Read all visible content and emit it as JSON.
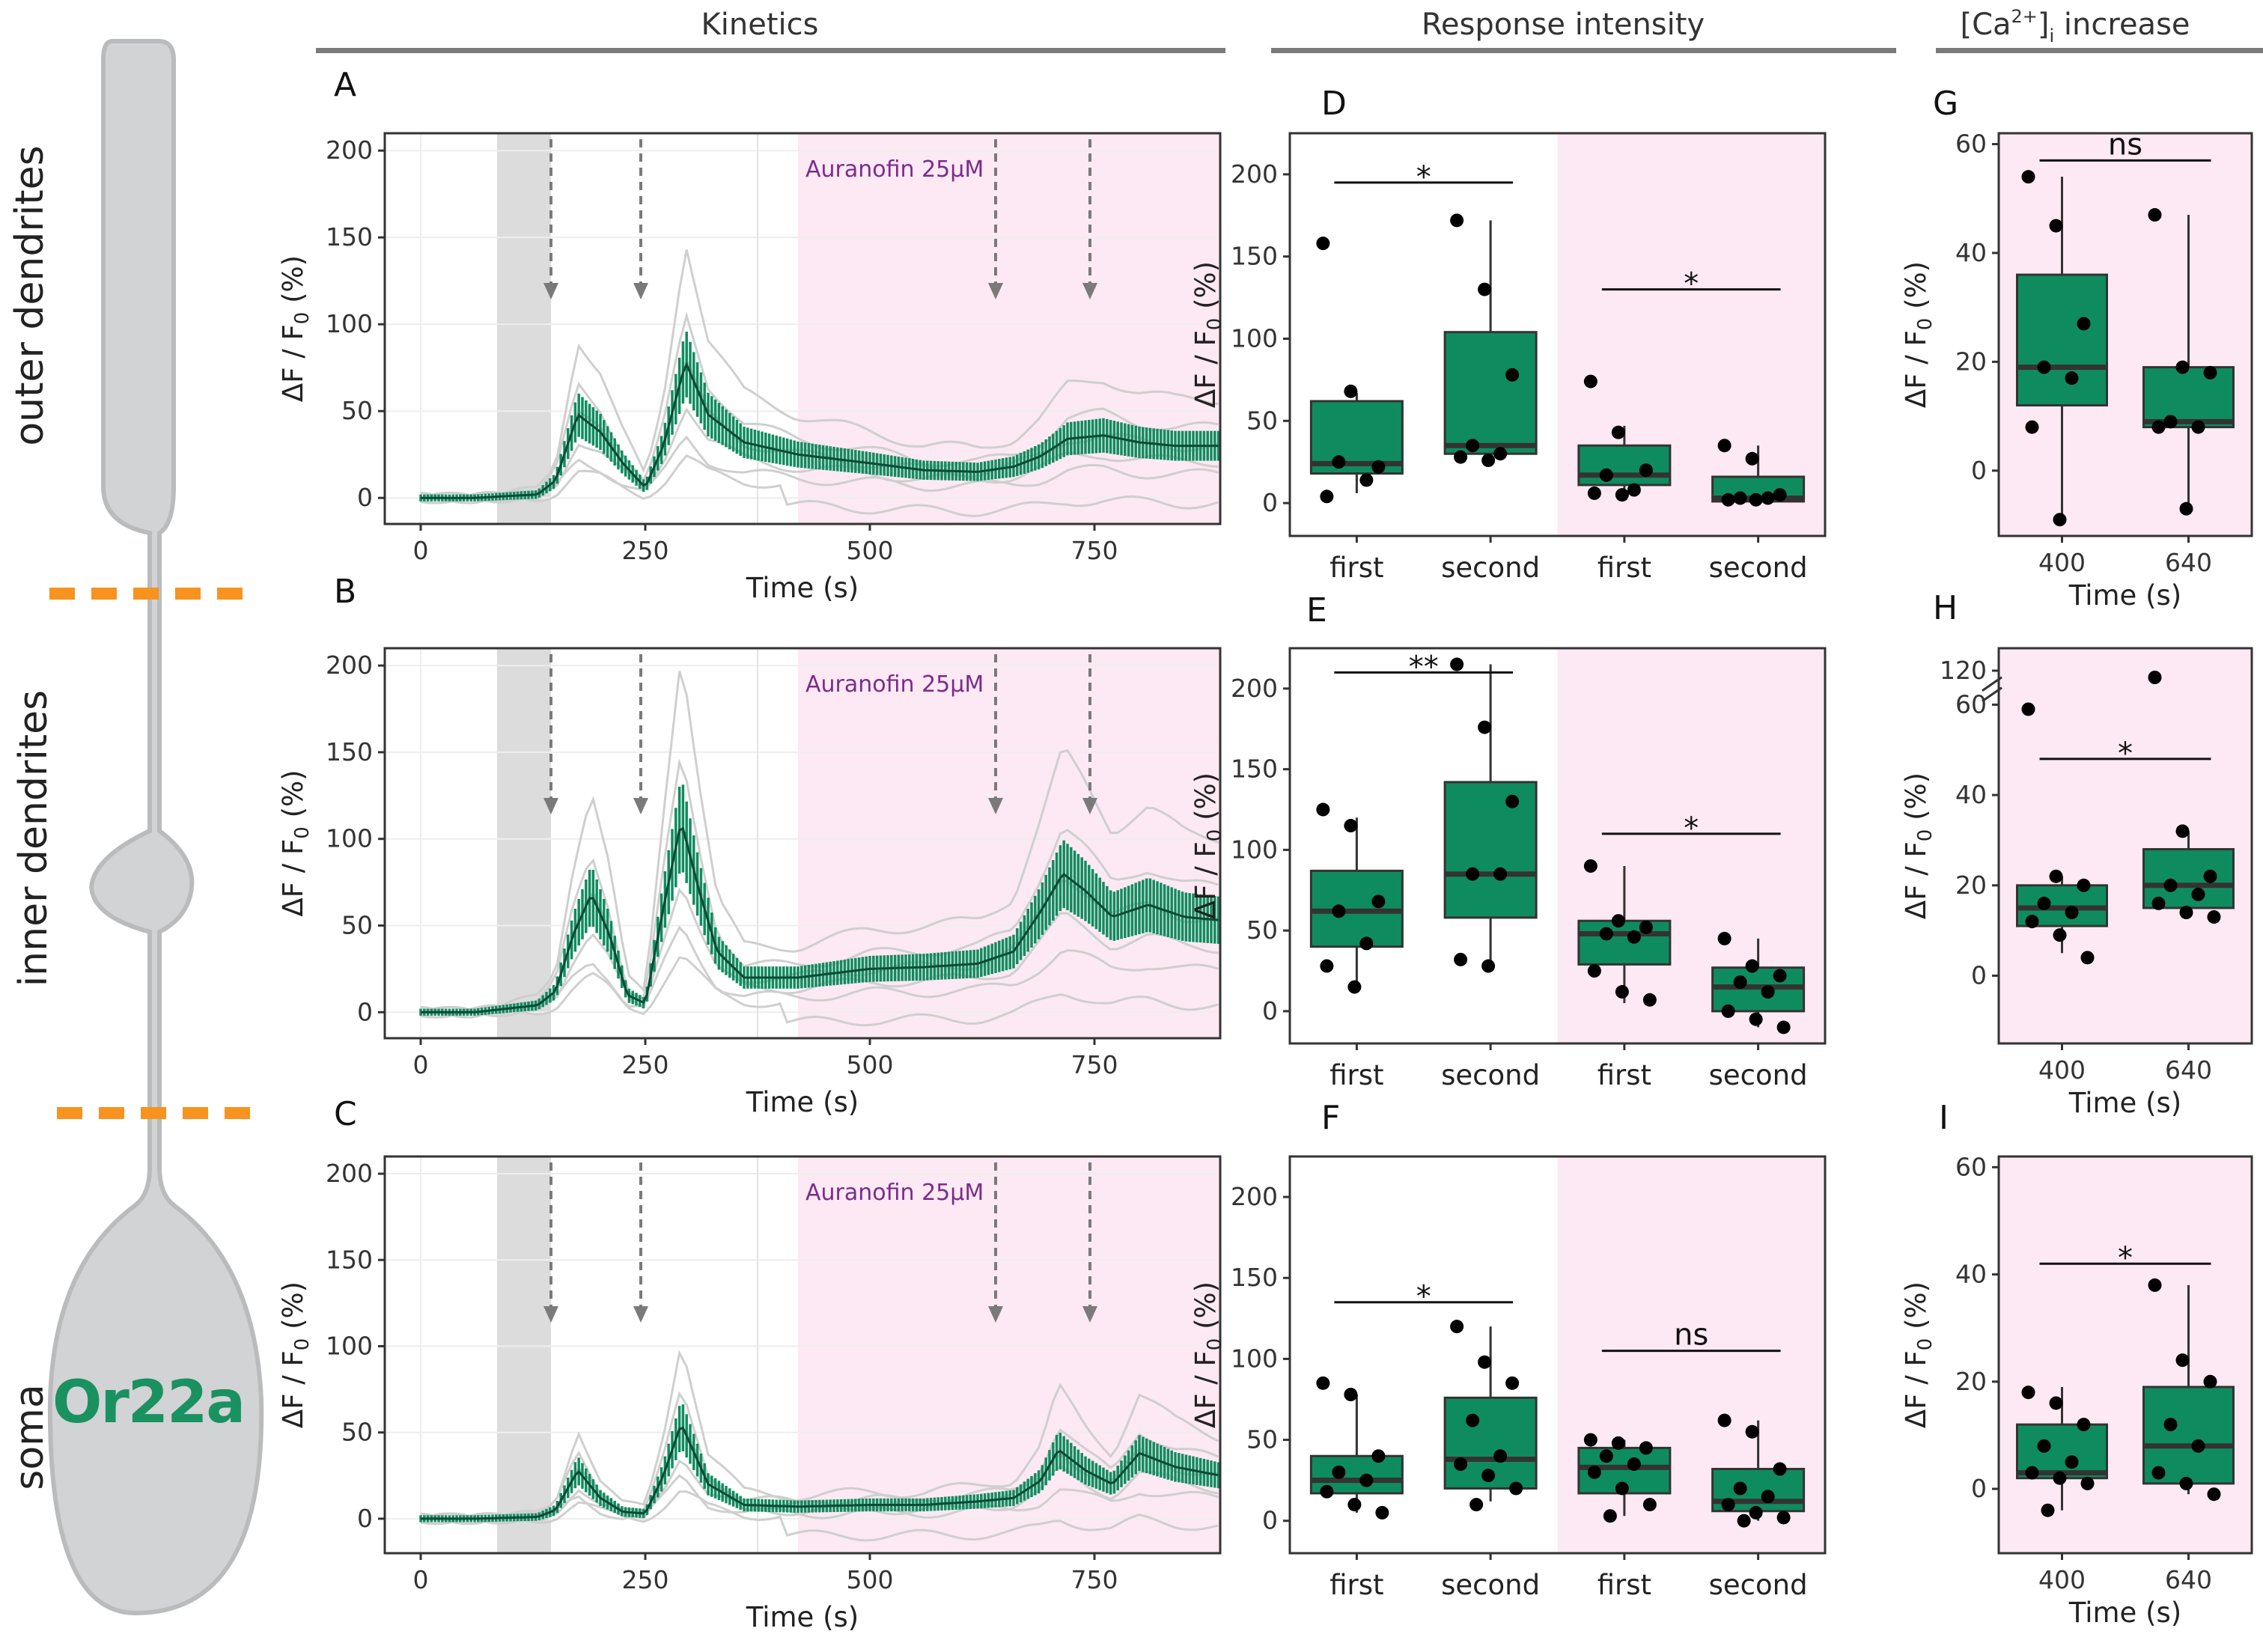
{
  "sections": {
    "kinetics": "Kinetics",
    "response_intensity": "Response intensity",
    "ca_increase": "[Ca2+]i increase"
  },
  "regions": [
    "outer dendrites",
    "inner dendrites",
    "soma"
  ],
  "neuron_label": "Or22a",
  "colors": {
    "green": "#0f8c5f",
    "green_dark": "#0a4a36",
    "pink": "#fde9f3",
    "grey_traces": "#cfcfcf",
    "divider": "#f7931e",
    "treatment": "#7a2c8c",
    "neuron": "#d1d3d4"
  },
  "chart_data": [
    {
      "panel": "A",
      "region": "outer dendrites",
      "type": "line",
      "xlabel": "Time (s)",
      "ylabel": "ΔF/F0 (%)",
      "xlim": [
        -40,
        890
      ],
      "ylim": [
        -15,
        210
      ],
      "xticks": [
        0,
        250,
        500,
        750
      ],
      "yticks": [
        0,
        50,
        100,
        150,
        200
      ],
      "treatment": {
        "label": "Auranofin 25µM",
        "start": 420
      },
      "stim_times": [
        145,
        245,
        640,
        745
      ],
      "mean": {
        "t": [
          0,
          60,
          130,
          150,
          175,
          200,
          225,
          250,
          270,
          295,
          320,
          360,
          420,
          500,
          560,
          620,
          660,
          690,
          720,
          760,
          800,
          840,
          890
        ],
        "v": [
          0,
          0,
          2,
          10,
          48,
          38,
          20,
          6,
          30,
          78,
          48,
          32,
          25,
          20,
          16,
          15,
          18,
          24,
          34,
          36,
          32,
          30,
          30
        ]
      }
    },
    {
      "panel": "B",
      "region": "inner dendrites",
      "type": "line",
      "xlabel": "Time (s)",
      "ylabel": "ΔF/F0 (%)",
      "xlim": [
        -40,
        890
      ],
      "ylim": [
        -15,
        210
      ],
      "xticks": [
        0,
        250,
        500,
        750
      ],
      "yticks": [
        0,
        50,
        100,
        150,
        200
      ],
      "treatment": {
        "label": "Auranofin 25µM",
        "start": 420
      },
      "stim_times": [
        145,
        245,
        640,
        745
      ],
      "mean": {
        "t": [
          0,
          60,
          130,
          150,
          170,
          190,
          210,
          230,
          250,
          270,
          290,
          310,
          330,
          360,
          420,
          500,
          560,
          620,
          660,
          690,
          715,
          740,
          770,
          810,
          850,
          890
        ],
        "v": [
          0,
          0,
          4,
          12,
          45,
          68,
          45,
          10,
          5,
          60,
          110,
          70,
          35,
          20,
          20,
          25,
          26,
          28,
          35,
          58,
          80,
          70,
          55,
          62,
          55,
          53
        ]
      }
    },
    {
      "panel": "C",
      "region": "soma",
      "type": "line",
      "xlabel": "Time (s)",
      "ylabel": "ΔF/F0 (%)",
      "xlim": [
        -40,
        890
      ],
      "ylim": [
        -20,
        210
      ],
      "xticks": [
        0,
        250,
        500,
        750
      ],
      "yticks": [
        0,
        50,
        100,
        150,
        200
      ],
      "treatment": {
        "label": "Auranofin 25µM",
        "start": 420
      },
      "stim_times": [
        145,
        245,
        640,
        745
      ],
      "mean": {
        "t": [
          0,
          60,
          130,
          150,
          175,
          200,
          225,
          250,
          270,
          290,
          320,
          360,
          420,
          500,
          560,
          620,
          660,
          690,
          710,
          740,
          770,
          800,
          840,
          890
        ],
        "v": [
          0,
          0,
          1,
          5,
          28,
          12,
          4,
          3,
          25,
          55,
          20,
          8,
          7,
          8,
          8,
          10,
          12,
          22,
          40,
          28,
          20,
          38,
          30,
          25
        ]
      }
    },
    {
      "panel": "D",
      "type": "box",
      "region": "outer dendrites",
      "ylabel": "ΔF/F0 (%)",
      "ylim": [
        -20,
        225
      ],
      "yticks": [
        0,
        50,
        100,
        150,
        200
      ],
      "categories": [
        "first",
        "second",
        "first",
        "second"
      ],
      "boxes": [
        {
          "min": 6,
          "q1": 18,
          "median": 24,
          "q3": 62,
          "max": 67
        },
        {
          "min": 28,
          "q1": 30,
          "median": 35,
          "q3": 104,
          "max": 172
        },
        {
          "min": 5,
          "q1": 11,
          "median": 17,
          "q3": 35,
          "max": 47
        },
        {
          "min": 0,
          "q1": 1,
          "median": 3,
          "q3": 16,
          "max": 35
        }
      ],
      "points": [
        [
          158,
          68,
          22,
          25,
          14,
          4
        ],
        [
          172,
          130,
          78,
          35,
          30,
          28,
          26
        ],
        [
          74,
          43,
          20,
          17,
          8,
          6,
          5
        ],
        [
          35,
          27,
          5,
          3,
          3,
          2,
          2
        ]
      ],
      "significance": [
        {
          "pair": [
            0,
            1
          ],
          "label": "*"
        },
        {
          "pair": [
            2,
            3
          ],
          "label": "*"
        }
      ]
    },
    {
      "panel": "E",
      "type": "box",
      "region": "inner dendrites",
      "ylabel": "ΔF/F0 (%)",
      "ylim": [
        -20,
        225
      ],
      "yticks": [
        0,
        50,
        100,
        150,
        200
      ],
      "categories": [
        "first",
        "second",
        "first",
        "second"
      ],
      "boxes": [
        {
          "min": 13,
          "q1": 40,
          "median": 62,
          "q3": 87,
          "max": 120
        },
        {
          "min": 28,
          "q1": 58,
          "median": 85,
          "q3": 142,
          "max": 215
        },
        {
          "min": 5,
          "q1": 29,
          "median": 48,
          "q3": 56,
          "max": 90
        },
        {
          "min": -10,
          "q1": 0,
          "median": 15,
          "q3": 27,
          "max": 45
        }
      ],
      "points": [
        [
          125,
          115,
          68,
          62,
          42,
          28,
          15
        ],
        [
          215,
          176,
          130,
          85,
          85,
          32,
          28
        ],
        [
          90,
          56,
          52,
          48,
          46,
          25,
          12,
          7
        ],
        [
          45,
          28,
          22,
          18,
          12,
          0,
          -5,
          -10
        ]
      ],
      "significance": [
        {
          "pair": [
            0,
            1
          ],
          "label": "**"
        },
        {
          "pair": [
            2,
            3
          ],
          "label": "*"
        }
      ]
    },
    {
      "panel": "F",
      "type": "box",
      "region": "soma",
      "ylabel": "ΔF/F0 (%)",
      "ylim": [
        -20,
        225
      ],
      "yticks": [
        0,
        50,
        100,
        150,
        200
      ],
      "categories": [
        "first",
        "second",
        "first",
        "second"
      ],
      "boxes": [
        {
          "min": 5,
          "q1": 17,
          "median": 25,
          "q3": 40,
          "max": 78
        },
        {
          "min": 12,
          "q1": 20,
          "median": 38,
          "q3": 76,
          "max": 120
        },
        {
          "min": 3,
          "q1": 17,
          "median": 33,
          "q3": 45,
          "max": 50
        },
        {
          "min": 0,
          "q1": 6,
          "median": 12,
          "q3": 32,
          "max": 62
        }
      ],
      "points": [
        [
          85,
          78,
          40,
          30,
          25,
          18,
          10,
          5
        ],
        [
          120,
          98,
          85,
          62,
          40,
          35,
          28,
          20,
          10
        ],
        [
          50,
          48,
          45,
          40,
          35,
          30,
          20,
          10,
          3
        ],
        [
          62,
          55,
          32,
          20,
          15,
          10,
          5,
          2,
          0
        ]
      ],
      "significance": [
        {
          "pair": [
            0,
            1
          ],
          "label": "*"
        },
        {
          "pair": [
            2,
            3
          ],
          "label": "ns"
        }
      ]
    },
    {
      "panel": "G",
      "type": "box",
      "region": "outer dendrites",
      "xlabel": "Time (s)",
      "ylabel": "ΔF/F0 (%)",
      "ylim": [
        -12,
        62
      ],
      "yticks": [
        0,
        20,
        40,
        60
      ],
      "categories": [
        "400",
        "640"
      ],
      "boxes": [
        {
          "min": -9,
          "q1": 12,
          "median": 19,
          "q3": 36,
          "max": 54
        },
        {
          "min": -7,
          "q1": 8,
          "median": 9,
          "q3": 19,
          "max": 47
        }
      ],
      "points": [
        [
          54,
          45,
          27,
          19,
          17,
          8,
          -9
        ],
        [
          47,
          19,
          18,
          9,
          8,
          8,
          -7
        ]
      ],
      "significance": [
        {
          "pair": [
            0,
            1
          ],
          "label": "ns"
        }
      ]
    },
    {
      "panel": "H",
      "type": "box",
      "region": "inner dendrites",
      "xlabel": "Time (s)",
      "ylabel": "ΔF/F0 (%)",
      "ylim": [
        -15,
        125
      ],
      "yticks": [
        0,
        20,
        40,
        60,
        120
      ],
      "axis_break": [
        60,
        120
      ],
      "categories": [
        "400",
        "640"
      ],
      "boxes": [
        {
          "min": 5,
          "q1": 11,
          "median": 15,
          "q3": 20,
          "max": 22
        },
        {
          "min": 13,
          "q1": 15,
          "median": 20,
          "q3": 28,
          "max": 32
        }
      ],
      "points": [
        [
          59,
          22,
          20,
          16,
          14,
          12,
          9,
          4
        ],
        [
          110,
          32,
          22,
          20,
          18,
          16,
          14,
          13
        ]
      ],
      "significance": [
        {
          "pair": [
            0,
            1
          ],
          "label": "*"
        }
      ]
    },
    {
      "panel": "I",
      "type": "box",
      "region": "soma",
      "xlabel": "Time (s)",
      "ylabel": "ΔF/F0 (%)",
      "ylim": [
        -12,
        62
      ],
      "yticks": [
        0,
        20,
        40,
        60
      ],
      "categories": [
        "400",
        "640"
      ],
      "boxes": [
        {
          "min": -4,
          "q1": 2,
          "median": 3,
          "q3": 12,
          "max": 19
        },
        {
          "min": -1,
          "q1": 1,
          "median": 8,
          "q3": 19,
          "max": 38
        }
      ],
      "points": [
        [
          18,
          16,
          12,
          8,
          5,
          3,
          2,
          1,
          -4
        ],
        [
          38,
          24,
          20,
          12,
          8,
          3,
          1,
          -1
        ]
      ],
      "significance": [
        {
          "pair": [
            0,
            1
          ],
          "label": "*"
        }
      ]
    }
  ]
}
